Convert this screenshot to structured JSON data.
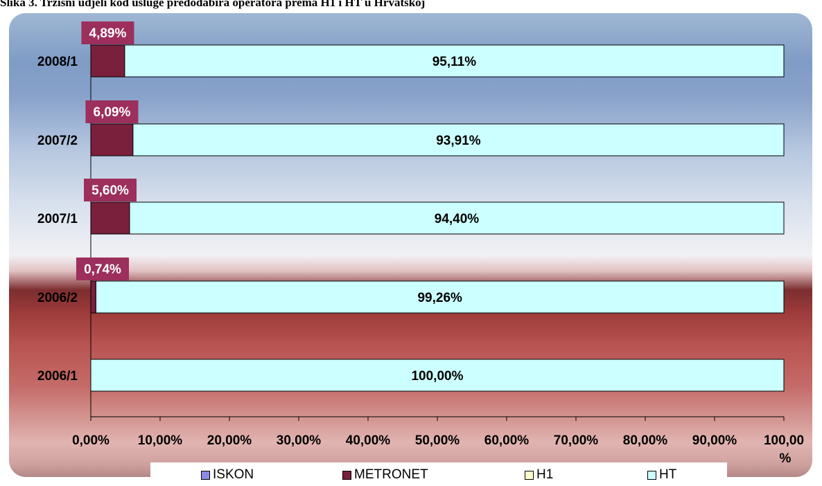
{
  "title": "Slika 3. Tržišni udjeli kod usluge predodabira operatora prema H1 i HT u Hrvatskoj",
  "chart_data": {
    "type": "bar",
    "orientation": "horizontal",
    "stacked": true,
    "categories": [
      "2008/1",
      "2007/2",
      "2007/1",
      "2006/2",
      "2006/1"
    ],
    "series": [
      {
        "name": "ISKON",
        "color": "#8a8ae6",
        "values": [
          0,
          0,
          0,
          0,
          0
        ]
      },
      {
        "name": "METRONET",
        "color": "#7a1f3c",
        "values": [
          4.89,
          6.09,
          5.6,
          0.74,
          0
        ]
      },
      {
        "name": "H1",
        "color": "#ffffcc",
        "values": [
          0,
          0,
          0,
          0,
          0
        ]
      },
      {
        "name": "HT",
        "color": "#ccffff",
        "values": [
          95.11,
          93.91,
          94.4,
          99.26,
          100.0
        ]
      }
    ],
    "metronet_labels": [
      "4,89%",
      "6,09%",
      "5,60%",
      "0,74%"
    ],
    "ht_labels": [
      "95,11%",
      "93,91%",
      "94,40%",
      "99,26%",
      "100,00%"
    ],
    "xlim": [
      0,
      100
    ],
    "xticks": [
      0,
      10,
      20,
      30,
      40,
      50,
      60,
      70,
      80,
      90,
      100
    ],
    "xtick_labels": [
      "0,00%",
      "10,00%",
      "20,00%",
      "30,00%",
      "40,00%",
      "50,00%",
      "60,00%",
      "70,00%",
      "80,00%",
      "90,00%",
      "100,00"
    ],
    "x_unit_overflow": "%",
    "legend_position": "bottom",
    "label_box_color": "#9c2f5c"
  }
}
